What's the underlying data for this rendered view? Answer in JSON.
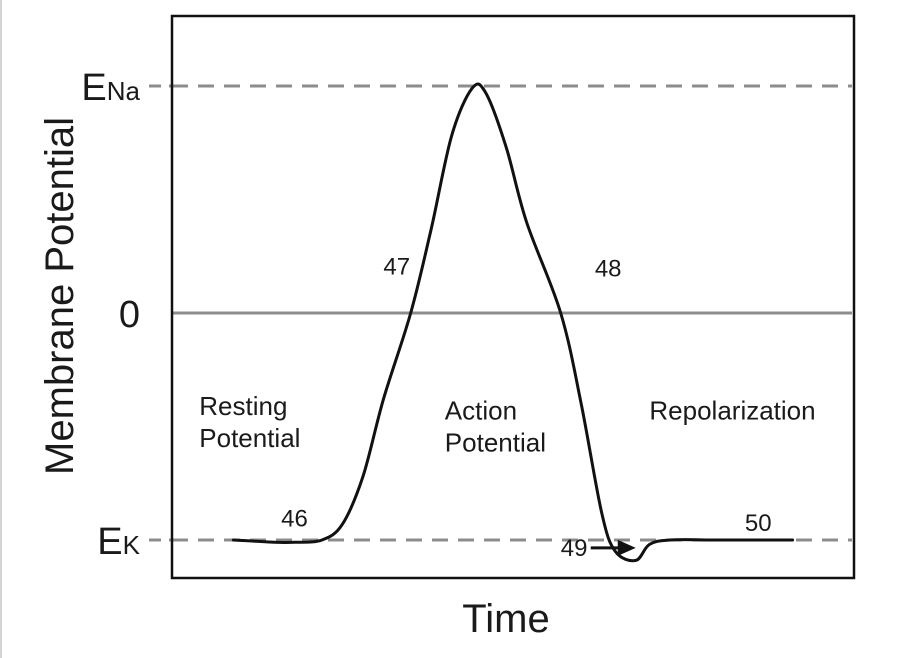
{
  "chart_data": {
    "type": "line",
    "title": "",
    "xlabel": "Time",
    "ylabel": "Membrane Potential",
    "y_ticks": [
      {
        "label_main": "E",
        "label_sub": "Na",
        "value": 1.0
      },
      {
        "label_main": "0",
        "label_sub": "",
        "value": 0.0
      },
      {
        "label_main": "E",
        "label_sub": "K",
        "value": -1.0
      }
    ],
    "reference_lines": [
      {
        "name": "E_Na",
        "value": 1.0,
        "style": "dashed"
      },
      {
        "name": "zero",
        "value": 0.0,
        "style": "solid"
      },
      {
        "name": "E_K",
        "value": -1.0,
        "style": "dashed"
      }
    ],
    "xlim": [
      0,
      100
    ],
    "ylim": [
      -1.1,
      1.3
    ],
    "grid": false,
    "series": [
      {
        "points": [
          [
            9,
            -1.0
          ],
          [
            12,
            -1.005
          ],
          [
            15,
            -1.01
          ],
          [
            18,
            -1.01
          ],
          [
            22,
            -1.0
          ],
          [
            25,
            -0.93
          ],
          [
            28,
            -0.72
          ],
          [
            31,
            -0.38
          ],
          [
            35,
            0.0
          ],
          [
            38,
            0.37
          ],
          [
            41,
            0.78
          ],
          [
            44,
            0.99
          ],
          [
            46,
            0.97
          ],
          [
            49,
            0.73
          ],
          [
            52,
            0.4
          ],
          [
            57,
            0.0
          ],
          [
            60,
            -0.4
          ],
          [
            63,
            -0.88
          ],
          [
            65,
            -1.05
          ],
          [
            68,
            -1.09
          ],
          [
            70,
            -1.02
          ],
          [
            73,
            -1.0
          ],
          [
            80,
            -1.0
          ],
          [
            87,
            -1.0
          ],
          [
            91,
            -1.0
          ]
        ]
      }
    ],
    "annotations": [
      {
        "text": "46",
        "x": 16,
        "y": -0.94
      },
      {
        "text": "47",
        "x": 31,
        "y": 0.17
      },
      {
        "text": "48",
        "x": 62,
        "y": 0.16
      },
      {
        "text": "49",
        "x": 57,
        "y": -1.07,
        "arrow_to": [
          68,
          -1.07
        ]
      },
      {
        "text": "50",
        "x": 84,
        "y": -0.96
      },
      {
        "lines": [
          "Resting",
          "Potential"
        ],
        "x": 4,
        "y": -0.45
      },
      {
        "lines": [
          "Action",
          "Potential"
        ],
        "x": 40,
        "y": -0.47
      },
      {
        "lines": [
          "Repolarization"
        ],
        "x": 70,
        "y": -0.47
      }
    ]
  }
}
